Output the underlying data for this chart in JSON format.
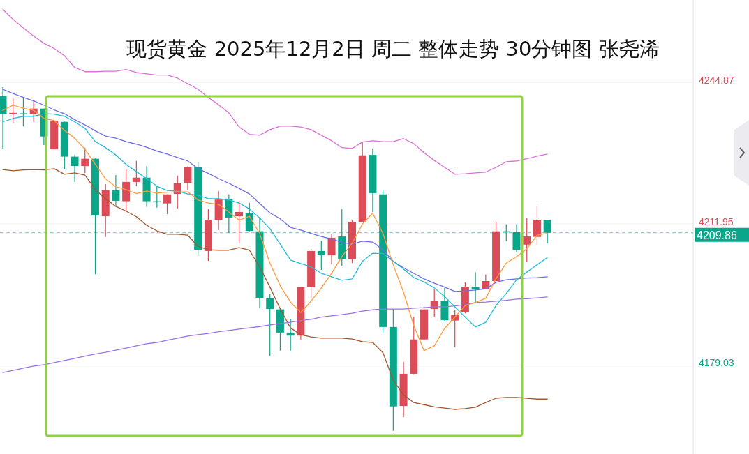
{
  "chart_data": {
    "type": "candlestick",
    "title": "现货黄金 2025年12月2日 周二 整体走势 30分钟图 张尧浠",
    "categories": [
      null,
      null,
      null,
      null,
      null,
      null,
      null,
      null,
      null,
      null,
      null,
      null,
      null,
      null,
      null,
      null,
      null,
      null,
      null,
      null,
      null,
      null,
      null,
      null,
      null,
      null,
      null,
      null,
      null,
      null,
      null,
      null,
      null,
      null,
      null,
      null,
      null,
      null,
      null,
      null,
      null,
      null,
      null,
      null,
      null,
      null,
      null,
      null,
      null,
      null,
      null,
      null,
      null,
      null
    ],
    "ylim": [
      4158.3,
      4264.1
    ],
    "yticks": [
      4179.03,
      4211.95,
      4244.87
    ],
    "grid": "y",
    "ref_lines": [
      {
        "axis": "y",
        "value": 4209.86,
        "label": "4209.86",
        "color": "#0aa68a",
        "line_style": "dashed"
      }
    ],
    "series": [
      {
        "type": "candlestick",
        "ohlc": [
          [
            4241.7,
            4243.8,
            4229.5,
            4237.5
          ],
          [
            4237.5,
            4241.1,
            4235.4,
            4237.8
          ],
          [
            4237.7,
            4241.5,
            4234.7,
            4237.6
          ],
          [
            4237.6,
            4240.6,
            4235.7,
            4238.8
          ],
          [
            4238.8,
            4238.8,
            4230.3,
            4232.3
          ],
          [
            4229.3,
            4236.0,
            4229.3,
            4236.0
          ],
          [
            4235.7,
            4235.8,
            4224.6,
            4227.6
          ],
          [
            4227.6,
            4228.0,
            4221.7,
            4225.4
          ],
          [
            4225.4,
            4229.7,
            4223.8,
            4227.1
          ],
          [
            4227.1,
            4227.2,
            4200.2,
            4213.9
          ],
          [
            4213.7,
            4221.2,
            4208.9,
            4219.8
          ],
          [
            4219.8,
            4223.3,
            4215.9,
            4217.3
          ],
          [
            4217.2,
            4224.6,
            4214.9,
            4221.7
          ],
          [
            4221.7,
            4226.6,
            4220.7,
            4222.7
          ],
          [
            4222.7,
            4225.4,
            4215.9,
            4217.2
          ],
          [
            4217.2,
            4220.7,
            4215.7,
            4217.0
          ],
          [
            4216.7,
            4218.8,
            4214.2,
            4218.8
          ],
          [
            4218.9,
            4223.2,
            4215.5,
            4221.4
          ],
          [
            4221.5,
            4225.4,
            4219.8,
            4225.1
          ],
          [
            4225.1,
            4226.4,
            4204.5,
            4205.9
          ],
          [
            4205.6,
            4215.4,
            4203.3,
            4212.9
          ],
          [
            4212.9,
            4219.6,
            4210.5,
            4217.6
          ],
          [
            4217.8,
            4218.8,
            4209.8,
            4213.4
          ],
          [
            4213.7,
            4217.3,
            4207.4,
            4214.7
          ],
          [
            4214.4,
            4216.8,
            4210.2,
            4210.3
          ],
          [
            4210.2,
            4213.4,
            4192.3,
            4194.7
          ],
          [
            4194.6,
            4195.5,
            4181.2,
            4192.1
          ],
          [
            4192.0,
            4192.4,
            4182.4,
            4186.6
          ],
          [
            4186.6,
            4189.8,
            4182.4,
            4185.9
          ],
          [
            4185.9,
            4197.2,
            4185.0,
            4197.2
          ],
          [
            4197.2,
            4206.1,
            4194.4,
            4205.6
          ],
          [
            4205.6,
            4208.0,
            4201.2,
            4204.6
          ],
          [
            4204.6,
            4209.5,
            4202.5,
            4208.7
          ],
          [
            4209.0,
            4215.4,
            4202.2,
            4203.7
          ],
          [
            4203.7,
            4212.8,
            4202.8,
            4212.4
          ],
          [
            4212.4,
            4231.0,
            4212.4,
            4227.9
          ],
          [
            4228.0,
            4229.5,
            4214.7,
            4219.1
          ],
          [
            4218.8,
            4219.8,
            4186.6,
            4187.9
          ],
          [
            4187.9,
            4192.1,
            4163.7,
            4169.4
          ],
          [
            4169.5,
            4179.8,
            4166.9,
            4177.0
          ],
          [
            4177.0,
            4190.3,
            4176.8,
            4185.0
          ],
          [
            4185.0,
            4192.8,
            4184.8,
            4192.0
          ],
          [
            4192.1,
            4196.7,
            4190.3,
            4193.9
          ],
          [
            4193.9,
            4197.0,
            4189.2,
            4189.5
          ],
          [
            4189.4,
            4191.8,
            4183.2,
            4190.7
          ],
          [
            4191.3,
            4198.3,
            4191.1,
            4197.3
          ],
          [
            4197.3,
            4200.6,
            4193.7,
            4196.7
          ],
          [
            4196.7,
            4200.1,
            4196.7,
            4198.6
          ],
          [
            4198.6,
            4212.4,
            4198.6,
            4210.2
          ],
          [
            4210.2,
            4211.8,
            4207.9,
            4210.0
          ],
          [
            4210.0,
            4211.8,
            4205.3,
            4205.9
          ],
          [
            4207.1,
            4213.3,
            4203.0,
            4209.0
          ],
          [
            4208.9,
            4216.2,
            4206.9,
            4212.9
          ],
          [
            4212.9,
            4212.9,
            4207.4,
            4209.86
          ]
        ],
        "colors": [
          "#0aa68a",
          "#dc4b58",
          "#0aa68a",
          "#dc4b58",
          "#0aa68a",
          "#dc4b58",
          "#0aa68a",
          "#0aa68a",
          "#dc4b58",
          "#0aa68a",
          "#dc4b58",
          "#0aa68a",
          "#dc4b58",
          "#dc4b58",
          "#0aa68a",
          "#0aa68a",
          "#dc4b58",
          "#dc4b58",
          "#dc4b58",
          "#0aa68a",
          "#dc4b58",
          "#dc4b58",
          "#0aa68a",
          "#dc4b58",
          "#0aa68a",
          "#0aa68a",
          "#0aa68a",
          "#0aa68a",
          "#0aa68a",
          "#dc4b58",
          "#dc4b58",
          "#0aa68a",
          "#dc4b58",
          "#0aa68a",
          "#dc4b58",
          "#dc4b58",
          "#0aa68a",
          "#0aa68a",
          "#0aa68a",
          "#dc4b58",
          "#dc4b58",
          "#dc4b58",
          "#dc4b58",
          "#0aa68a",
          "#dc4b58",
          "#dc4b58",
          "#0aa68a",
          "#dc4b58",
          "#dc4b58",
          "#0aa68a",
          "#0aa68a",
          "#dc4b58",
          "#dc4b58",
          "#0aa68a"
        ]
      },
      {
        "type": "line",
        "color": "#da70d6",
        "values": [
          4261.9,
          4259.6,
          4257.6,
          4255.7,
          4254.0,
          4252.8,
          4251.1,
          4248.4,
          4247.4,
          4247.4,
          4247.5,
          4247.5,
          4247.9,
          4247.2,
          4246.9,
          4246.6,
          4246.6,
          4245.9,
          4244.6,
          4243.3,
          4241.4,
          4239.7,
          4237.8,
          4234.5,
          4232.8,
          4232.6,
          4233.9,
          4234.7,
          4234.7,
          4234.5,
          4233.9,
          4232.6,
          4231.3,
          4229.7,
          4229.5,
          4231.0,
          4231.3,
          4231.1,
          4231.1,
          4231.8,
          4230.6,
          4228.5,
          4226.7,
          4225.1,
          4223.5,
          4223.6,
          4223.8,
          4224.0,
          4225.1,
          4226.4,
          4226.6,
          4227.1,
          4227.7,
          4228.2
        ]
      },
      {
        "type": "line",
        "color": "#a0562e",
        "values": [
          4224.6,
          4224.3,
          4224.5,
          4224.6,
          4224.5,
          4224.8,
          4223.5,
          4223.8,
          4223.3,
          4219.9,
          4217.8,
          4216.0,
          4214.9,
          4213.6,
          4211.6,
          4210.3,
          4209.5,
          4209.5,
          4209.3,
          4206.7,
          4205.9,
          4205.8,
          4205.8,
          4206.4,
          4205.8,
          4201.9,
          4197.2,
          4192.1,
          4187.7,
          4186.1,
          4185.6,
          4185.3,
          4185.3,
          4185.3,
          4185.1,
          4184.5,
          4184.3,
          4181.9,
          4175.5,
          4172.1,
          4170.3,
          4169.8,
          4169.3,
          4169.0,
          4168.7,
          4168.9,
          4169.2,
          4170.3,
          4171.3,
          4171.5,
          4171.5,
          4171.3,
          4171.1,
          4171.1
        ]
      },
      {
        "type": "line",
        "color": "#9b72e6",
        "values": [
          4177.3,
          4177.8,
          4178.3,
          4178.8,
          4179.1,
          4179.6,
          4180.1,
          4180.6,
          4181.1,
          4181.6,
          4182.0,
          4182.5,
          4183.0,
          4183.5,
          4184.0,
          4184.3,
          4184.8,
          4185.3,
          4185.8,
          4186.1,
          4186.4,
          4186.8,
          4187.1,
          4187.4,
          4187.7,
          4188.0,
          4188.4,
          4188.7,
          4189.0,
          4189.4,
          4189.7,
          4190.2,
          4190.5,
          4190.8,
          4191.1,
          4191.6,
          4191.9,
          4192.1,
          4192.1,
          4192.1,
          4192.3,
          4192.4,
          4192.6,
          4192.6,
          4192.8,
          4193.1,
          4193.6,
          4193.7,
          4193.9,
          4194.1,
          4194.4,
          4194.5,
          4194.7,
          4194.9
        ]
      },
      {
        "type": "line",
        "color": "#6b6ee8",
        "values": [
          4243.3,
          4242.3,
          4241.4,
          4240.6,
          4239.6,
          4238.5,
          4237.6,
          4236.2,
          4235.0,
          4233.6,
          4232.4,
          4231.9,
          4231.1,
          4230.5,
          4229.8,
          4228.9,
          4228.2,
          4227.4,
          4226.6,
          4224.8,
          4223.7,
          4222.5,
          4221.4,
          4220.2,
          4218.9,
          4216.7,
          4214.5,
          4213.1,
          4211.1,
          4210.5,
          4209.7,
          4209.0,
          4208.4,
          4207.6,
          4207.2,
          4207.9,
          4207.7,
          4205.9,
          4203.2,
          4201.7,
          4200.4,
          4199.1,
          4198.1,
          4197.2,
          4196.2,
          4196.3,
          4196.5,
          4196.8,
          4198.3,
          4198.9,
          4199.1,
          4199.3,
          4199.4,
          4199.6
        ]
      },
      {
        "type": "line",
        "color": "#22bcd8",
        "values": [
          4235.7,
          4236.5,
          4237.0,
          4237.0,
          4237.6,
          4237.5,
          4237.0,
          4235.7,
          4234.2,
          4231.1,
          4229.7,
          4228.0,
          4225.8,
          4224.1,
          4222.5,
          4220.7,
          4219.7,
          4219.6,
          4218.9,
          4218.6,
          4217.8,
          4217.8,
          4217.5,
          4216.8,
          4215.4,
          4213.3,
          4210.8,
          4207.2,
          4203.5,
          4202.7,
          4201.9,
          4200.4,
          4199.6,
          4198.8,
          4199.1,
          4203.2,
          4205.1,
          4205.0,
          4203.2,
          4201.4,
          4199.4,
          4198.4,
          4197.0,
          4195.0,
          4192.6,
          4190.2,
          4187.9,
          4189.0,
          4192.9,
          4195.7,
          4198.9,
          4200.7,
          4202.4,
          4204.1
        ]
      },
      {
        "type": "line",
        "color": "#ff9a3c",
        "values": [
          4238.4,
          4239.6,
          4238.9,
          4238.4,
          4236.5,
          4236.0,
          4233.7,
          4231.9,
          4229.3,
          4225.8,
          4222.4,
          4220.6,
          4219.9,
          4219.0,
          4219.6,
          4219.1,
          4219.3,
          4219.4,
          4219.4,
          4217.5,
          4216.8,
          4216.5,
          4214.7,
          4212.8,
          4213.7,
          4209.7,
          4202.8,
          4197.5,
          4193.7,
          4191.3,
          4193.9,
          4197.0,
          4200.4,
          4204.3,
          4207.4,
          4211.9,
          4214.4,
          4209.7,
          4202.4,
          4196.0,
          4188.2,
          4182.4,
          4183.5,
          4187.6,
          4190.2,
          4192.9,
          4193.6,
          4194.6,
          4199.1,
          4202.8,
          4204.3,
          4206.1,
          4209.3,
          4209.7
        ]
      }
    ]
  }
}
